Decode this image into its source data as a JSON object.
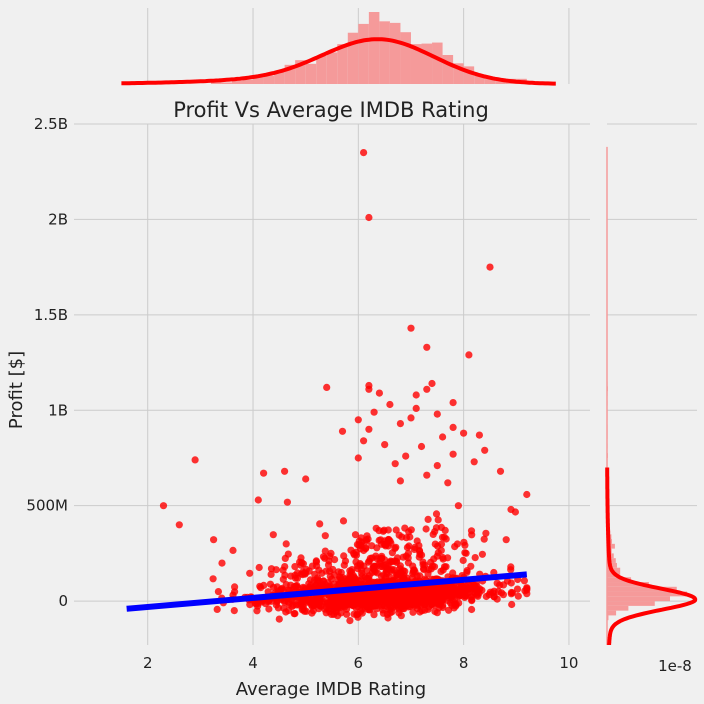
{
  "chart_data": {
    "type": "scatter",
    "title": "Profit Vs Average IMDB Rating",
    "xlabel": "Average IMDB Rating",
    "ylabel": "Profit [$]",
    "xlim": [
      0.6,
      10.4
    ],
    "ylim": [
      -230000000,
      2500000000
    ],
    "x_ticks": [
      2,
      4,
      6,
      8,
      10
    ],
    "y_ticks": [
      {
        "value": 0,
        "label": "0"
      },
      {
        "value": 500000000,
        "label": "500M"
      },
      {
        "value": 1000000000,
        "label": "1B"
      },
      {
        "value": 1500000000,
        "label": "1.5B"
      },
      {
        "value": 2000000000,
        "label": "2B"
      },
      {
        "value": 2500000000,
        "label": "2.5B"
      }
    ],
    "grid": true,
    "marginal_y_offset_label": "1e-8",
    "colors": {
      "points": "#ff0000",
      "regression": "#0000ff",
      "grid": "#cbcbcb",
      "background": "#f0f0f0",
      "histogram": "#f59a9a"
    },
    "regression_line": {
      "x": [
        1.6,
        9.2
      ],
      "y": [
        -40000000,
        140000000
      ]
    },
    "outliers": [
      {
        "x": 6.1,
        "y": 2350000000
      },
      {
        "x": 6.2,
        "y": 2010000000
      },
      {
        "x": 8.5,
        "y": 1750000000
      },
      {
        "x": 7.0,
        "y": 1430000000
      },
      {
        "x": 7.3,
        "y": 1330000000
      },
      {
        "x": 8.1,
        "y": 1290000000
      },
      {
        "x": 6.2,
        "y": 1130000000
      },
      {
        "x": 6.2,
        "y": 1110000000
      },
      {
        "x": 5.4,
        "y": 1120000000
      },
      {
        "x": 7.4,
        "y": 1140000000
      },
      {
        "x": 7.3,
        "y": 1110000000
      },
      {
        "x": 6.4,
        "y": 1090000000
      },
      {
        "x": 7.1,
        "y": 1080000000
      },
      {
        "x": 7.8,
        "y": 1040000000
      },
      {
        "x": 6.6,
        "y": 1030000000
      },
      {
        "x": 7.1,
        "y": 1010000000
      },
      {
        "x": 6.3,
        "y": 990000000
      },
      {
        "x": 7.5,
        "y": 980000000
      },
      {
        "x": 7.0,
        "y": 960000000
      },
      {
        "x": 6.0,
        "y": 950000000
      },
      {
        "x": 6.8,
        "y": 930000000
      },
      {
        "x": 7.8,
        "y": 910000000
      },
      {
        "x": 6.2,
        "y": 900000000
      },
      {
        "x": 5.7,
        "y": 890000000
      },
      {
        "x": 8.0,
        "y": 880000000
      },
      {
        "x": 8.3,
        "y": 870000000
      },
      {
        "x": 7.6,
        "y": 860000000
      },
      {
        "x": 6.1,
        "y": 840000000
      },
      {
        "x": 6.5,
        "y": 820000000
      },
      {
        "x": 7.2,
        "y": 810000000
      },
      {
        "x": 8.4,
        "y": 790000000
      },
      {
        "x": 7.8,
        "y": 770000000
      },
      {
        "x": 6.9,
        "y": 760000000
      },
      {
        "x": 6.0,
        "y": 750000000
      },
      {
        "x": 2.9,
        "y": 740000000
      },
      {
        "x": 8.2,
        "y": 730000000
      },
      {
        "x": 6.7,
        "y": 720000000
      },
      {
        "x": 7.5,
        "y": 710000000
      },
      {
        "x": 8.7,
        "y": 680000000
      },
      {
        "x": 4.6,
        "y": 680000000
      },
      {
        "x": 4.2,
        "y": 670000000
      },
      {
        "x": 7.3,
        "y": 660000000
      },
      {
        "x": 5.0,
        "y": 640000000
      },
      {
        "x": 6.8,
        "y": 630000000
      },
      {
        "x": 7.7,
        "y": 620000000
      },
      {
        "x": 4.1,
        "y": 530000000
      },
      {
        "x": 2.3,
        "y": 500000000
      },
      {
        "x": 2.6,
        "y": 400000000
      },
      {
        "x": 8.9,
        "y": 480000000
      },
      {
        "x": 7.9,
        "y": 500000000
      }
    ],
    "bulk_summary": {
      "count": 1500,
      "x_mean": 6.4,
      "x_sd": 1.05,
      "y_median": 10000000,
      "y_spread": 70000000,
      "y_tail_max": 600000000
    }
  }
}
